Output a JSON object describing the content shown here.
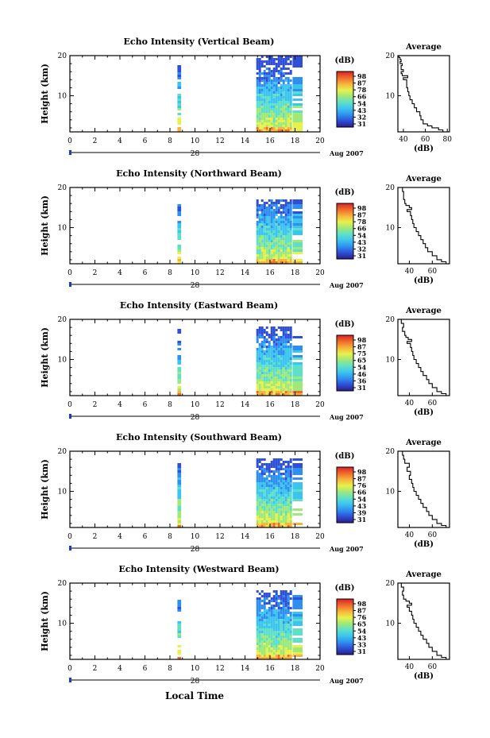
{
  "figure": {
    "xlabel": "Local Time",
    "date_day": "28",
    "date_label": "Aug 2007",
    "ylabel": "Height (km)",
    "colorbar_unit": "(dB)",
    "colorbar_ticks": [
      "31",
      "32",
      "43",
      "54",
      "66",
      "78",
      "87",
      "98"
    ],
    "colorbar_colors": [
      "#2b1c8c",
      "#2e4fd6",
      "#2f8ff0",
      "#3cc4f0",
      "#5ee0c8",
      "#9fe87a",
      "#e8f04a",
      "#f6b23c",
      "#f06a2a",
      "#d8202a"
    ]
  },
  "chart_data": [
    {
      "type": "heatmap",
      "title": "Echo Intensity (Vertical Beam)",
      "xlabel": "Local Time",
      "ylabel": "Height (km)",
      "x_ticks": [
        0,
        2,
        4,
        6,
        8,
        10,
        12,
        14,
        16,
        18,
        20
      ],
      "y_ticks": [
        10,
        20
      ],
      "xlim": [
        0,
        20
      ],
      "ylim": [
        1,
        20
      ],
      "data_segments": [
        {
          "start": 8.6,
          "end": 8.9,
          "top_km": 17.5
        },
        {
          "start": 14.9,
          "end": 17.6,
          "top_km": 20
        },
        {
          "start": 17.8,
          "end": 18.6,
          "top_km": 20
        }
      ],
      "colorbar_ticks": [
        31,
        32,
        43,
        54,
        66,
        78,
        87,
        98
      ],
      "profile": {
        "title": "Average",
        "xlabel": "(dB)",
        "x_ticks": [
          40,
          60,
          80
        ],
        "xlim": [
          35,
          82
        ],
        "height_km": [
          1.0,
          1.5,
          2,
          2.5,
          3,
          4,
          5,
          6,
          7,
          8,
          9,
          10,
          11,
          12,
          13,
          14,
          14.5,
          15,
          15.5,
          16,
          16.5,
          17,
          17.5,
          18,
          18.5,
          19,
          19.5,
          20
        ],
        "intensity_db": [
          80,
          76,
          72,
          66,
          62,
          58,
          56,
          55,
          52,
          50,
          48,
          46,
          45,
          44,
          43,
          43,
          40,
          44,
          39,
          38,
          40,
          38,
          38,
          39,
          37,
          38,
          37,
          36
        ]
      }
    },
    {
      "type": "heatmap",
      "title": "Echo Intensity (Northward Beam)",
      "xlabel": "Local Time",
      "ylabel": "Height (km)",
      "x_ticks": [
        0,
        2,
        4,
        6,
        8,
        10,
        12,
        14,
        16,
        18,
        20
      ],
      "y_ticks": [
        10,
        20
      ],
      "xlim": [
        0,
        20
      ],
      "ylim": [
        1,
        20
      ],
      "data_segments": [
        {
          "start": 8.6,
          "end": 8.9,
          "top_km": 15.5
        },
        {
          "start": 14.9,
          "end": 17.6,
          "top_km": 17
        },
        {
          "start": 17.8,
          "end": 18.6,
          "top_km": 17
        }
      ],
      "colorbar_ticks": [
        31,
        32,
        43,
        54,
        66,
        78,
        87,
        98
      ],
      "profile": {
        "title": "Average",
        "xlabel": "(dB)",
        "x_ticks": [
          40,
          60
        ],
        "xlim": [
          30,
          75
        ],
        "height_km": [
          1.0,
          1.5,
          2,
          3,
          4,
          5,
          6,
          7,
          8,
          9,
          10,
          11,
          12,
          13,
          14,
          14.5,
          15,
          15.5,
          16,
          17,
          18,
          19,
          20
        ],
        "intensity_db": [
          74,
          72,
          68,
          64,
          60,
          56,
          54,
          52,
          50,
          48,
          46,
          44,
          43,
          42,
          41,
          38,
          42,
          40,
          37,
          36,
          35,
          35,
          34
        ]
      }
    },
    {
      "type": "heatmap",
      "title": "Echo Intensity (Eastward Beam)",
      "xlabel": "Local Time",
      "ylabel": "Height (km)",
      "x_ticks": [
        0,
        2,
        4,
        6,
        8,
        10,
        12,
        14,
        16,
        18,
        20
      ],
      "y_ticks": [
        10,
        20
      ],
      "xlim": [
        0,
        20
      ],
      "ylim": [
        1,
        20
      ],
      "data_segments": [
        {
          "start": 8.6,
          "end": 8.9,
          "top_km": 17.5
        },
        {
          "start": 14.9,
          "end": 17.6,
          "top_km": 18
        },
        {
          "start": 17.8,
          "end": 18.6,
          "top_km": 15.5
        }
      ],
      "colorbar_ticks": [
        31,
        36,
        46,
        54,
        65,
        75,
        87,
        98
      ],
      "profile": {
        "title": "Average",
        "xlabel": "(dB)",
        "x_ticks": [
          40,
          60
        ],
        "xlim": [
          30,
          75
        ],
        "height_km": [
          1.0,
          1.5,
          2,
          3,
          4,
          5,
          6,
          7,
          8,
          9,
          10,
          11,
          12,
          13,
          14,
          14.5,
          15,
          15.5,
          16,
          17,
          18,
          19,
          20
        ],
        "intensity_db": [
          74,
          72,
          68,
          64,
          60,
          57,
          55,
          52,
          50,
          48,
          46,
          44,
          43,
          42,
          41,
          38,
          42,
          39,
          37,
          36,
          34,
          35,
          33
        ]
      }
    },
    {
      "type": "heatmap",
      "title": "Echo Intensity (Southward Beam)",
      "xlabel": "Local Time",
      "ylabel": "Height (km)",
      "x_ticks": [
        0,
        2,
        4,
        6,
        8,
        10,
        12,
        14,
        16,
        18,
        20
      ],
      "y_ticks": [
        10,
        20
      ],
      "xlim": [
        0,
        20
      ],
      "ylim": [
        1,
        20
      ],
      "data_segments": [
        {
          "start": 8.6,
          "end": 8.9,
          "top_km": 17
        },
        {
          "start": 14.9,
          "end": 17.6,
          "top_km": 18
        },
        {
          "start": 17.8,
          "end": 18.6,
          "top_km": 18
        }
      ],
      "colorbar_ticks": [
        31,
        39,
        43,
        54,
        66,
        76,
        87,
        98
      ],
      "profile": {
        "title": "Average",
        "xlabel": "(dB)",
        "x_ticks": [
          40,
          60
        ],
        "xlim": [
          30,
          75
        ],
        "height_km": [
          1.0,
          1.5,
          2,
          3,
          4,
          5,
          6,
          7,
          8,
          9,
          10,
          11,
          12,
          13,
          14,
          15,
          16,
          17,
          18,
          19,
          20
        ],
        "intensity_db": [
          74,
          72,
          68,
          64,
          60,
          57,
          55,
          52,
          50,
          48,
          46,
          44,
          43,
          42,
          40,
          41,
          38,
          40,
          36,
          35,
          34
        ]
      }
    },
    {
      "type": "heatmap",
      "title": "Echo Intensity (Westward Beam)",
      "xlabel": "Local Time",
      "ylabel": "Height (km)",
      "x_ticks": [
        0,
        2,
        4,
        6,
        8,
        10,
        12,
        14,
        16,
        18,
        20
      ],
      "y_ticks": [
        10,
        20
      ],
      "xlim": [
        0,
        20
      ],
      "ylim": [
        1,
        20
      ],
      "data_segments": [
        {
          "start": 8.6,
          "end": 8.9,
          "top_km": 16
        },
        {
          "start": 14.9,
          "end": 17.6,
          "top_km": 18
        },
        {
          "start": 17.8,
          "end": 18.6,
          "top_km": 17
        }
      ],
      "colorbar_ticks": [
        31,
        33,
        43,
        54,
        65,
        76,
        87,
        98
      ],
      "profile": {
        "title": "Average",
        "xlabel": "(dB)",
        "x_ticks": [
          40,
          60
        ],
        "xlim": [
          30,
          75
        ],
        "height_km": [
          1.0,
          1.5,
          2,
          3,
          4,
          5,
          6,
          7,
          8,
          9,
          10,
          11,
          12,
          13,
          14,
          14.5,
          15,
          15.5,
          16,
          17,
          18,
          19,
          20
        ],
        "intensity_db": [
          74,
          72,
          68,
          64,
          60,
          57,
          55,
          52,
          50,
          48,
          46,
          44,
          43,
          42,
          40,
          38,
          42,
          40,
          37,
          35,
          34,
          35,
          33
        ]
      }
    }
  ]
}
